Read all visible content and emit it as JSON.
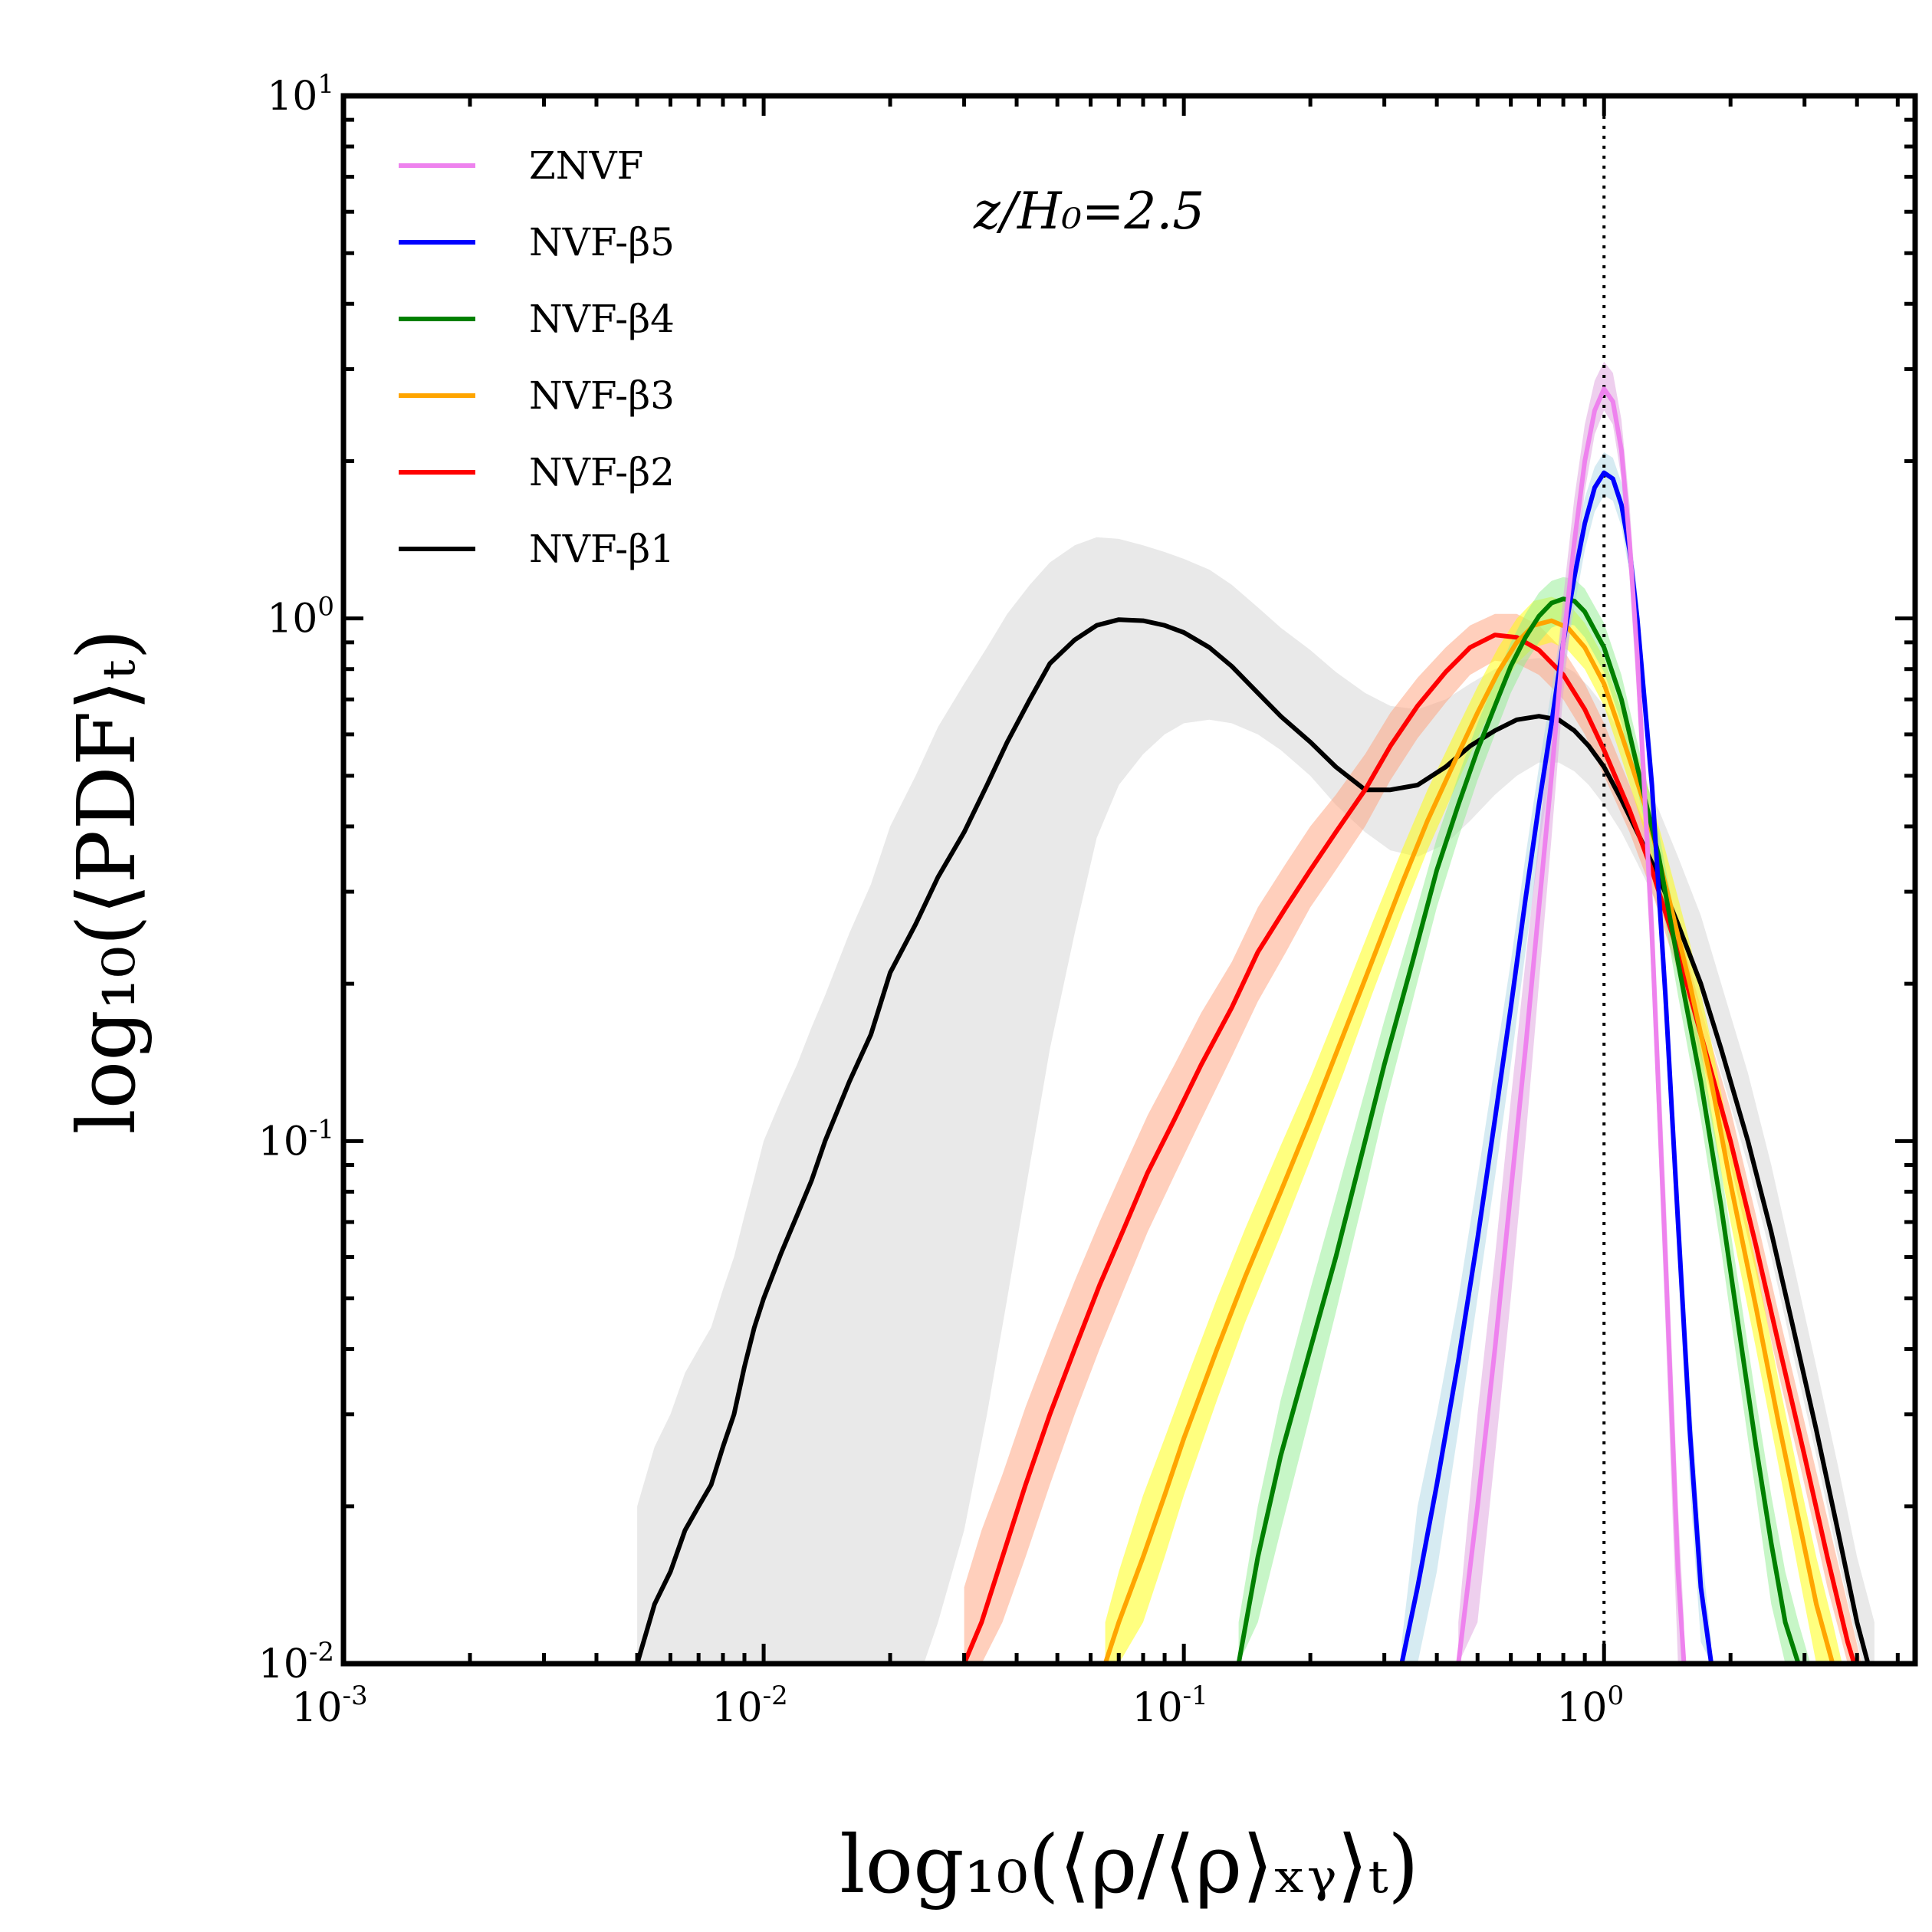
{
  "chart_data": {
    "type": "line",
    "title": "",
    "annotation": "z/H₀=2.5",
    "xlabel": "log₁₀(⟨ρ/⟨ρ⟩ₓᵧ⟩ₜ)",
    "ylabel": "log₁₀(⟨PDF⟩ₜ)",
    "xscale": "log",
    "yscale": "log",
    "xlim": [
      0.001,
      5.5
    ],
    "ylim": [
      0.01,
      10
    ],
    "x_ticks": [
      {
        "base": "10",
        "exp": "-3",
        "value": 0.001
      },
      {
        "base": "10",
        "exp": "-2",
        "value": 0.01
      },
      {
        "base": "10",
        "exp": "-1",
        "value": 0.1
      },
      {
        "base": "10",
        "exp": "0",
        "value": 1
      }
    ],
    "y_ticks": [
      {
        "base": "10",
        "exp": "-2",
        "value": 0.01
      },
      {
        "base": "10",
        "exp": "-1",
        "value": 0.1
      },
      {
        "base": "10",
        "exp": "0",
        "value": 1
      },
      {
        "base": "10",
        "exp": "1",
        "value": 10
      }
    ],
    "reference_line": {
      "x": 1.0,
      "style": "dotted"
    },
    "legend_position": "upper-left",
    "series": [
      {
        "name": "ZNVF",
        "color": "#ee82ee",
        "band_color": "#dda0dd",
        "x": [
          0.45,
          0.5,
          0.55,
          0.6,
          0.65,
          0.7,
          0.75,
          0.8,
          0.85,
          0.9,
          0.95,
          1.0,
          1.05,
          1.1,
          1.15,
          1.2,
          1.3,
          1.4,
          1.5,
          1.55
        ],
        "y": [
          0.01,
          0.02,
          0.04,
          0.08,
          0.15,
          0.28,
          0.5,
          0.9,
          1.4,
          2.0,
          2.5,
          2.75,
          2.6,
          2.1,
          1.4,
          0.85,
          0.25,
          0.06,
          0.015,
          0.01
        ],
        "band_lower": [
          0.01,
          0.012,
          0.025,
          0.05,
          0.1,
          0.2,
          0.38,
          0.72,
          1.15,
          1.75,
          2.25,
          2.5,
          2.35,
          1.85,
          1.2,
          0.7,
          0.2,
          0.045,
          0.01,
          0.01
        ],
        "band_upper": [
          0.012,
          0.03,
          0.06,
          0.12,
          0.22,
          0.38,
          0.65,
          1.1,
          1.7,
          2.35,
          2.85,
          3.1,
          2.95,
          2.4,
          1.65,
          1.0,
          0.32,
          0.08,
          0.02,
          0.012
        ]
      },
      {
        "name": "NVF-β5",
        "color": "#0000ff",
        "band_color": "#add8e6",
        "x": [
          0.33,
          0.36,
          0.4,
          0.45,
          0.5,
          0.55,
          0.6,
          0.65,
          0.7,
          0.75,
          0.8,
          0.85,
          0.9,
          0.95,
          1.0,
          1.05,
          1.1,
          1.15,
          1.2,
          1.3,
          1.4,
          1.5,
          1.6,
          1.7,
          1.8
        ],
        "y": [
          0.01,
          0.014,
          0.022,
          0.038,
          0.065,
          0.11,
          0.18,
          0.29,
          0.44,
          0.63,
          0.9,
          1.2,
          1.52,
          1.78,
          1.9,
          1.85,
          1.65,
          1.35,
          1.0,
          0.48,
          0.19,
          0.07,
          0.028,
          0.014,
          0.01
        ],
        "band_lower": [
          0.01,
          0.01,
          0.015,
          0.028,
          0.05,
          0.085,
          0.14,
          0.23,
          0.36,
          0.53,
          0.78,
          1.05,
          1.35,
          1.6,
          1.72,
          1.68,
          1.5,
          1.22,
          0.9,
          0.42,
          0.16,
          0.058,
          0.022,
          0.011,
          0.01
        ],
        "band_upper": [
          0.011,
          0.02,
          0.03,
          0.05,
          0.085,
          0.14,
          0.22,
          0.35,
          0.52,
          0.73,
          1.02,
          1.35,
          1.7,
          1.95,
          2.08,
          2.03,
          1.82,
          1.5,
          1.12,
          0.55,
          0.22,
          0.085,
          0.034,
          0.017,
          0.011
        ]
      },
      {
        "name": "NVF-β4",
        "color": "#008000",
        "band_color": "#90ee90",
        "x": [
          0.135,
          0.15,
          0.17,
          0.2,
          0.23,
          0.27,
          0.3,
          0.35,
          0.4,
          0.45,
          0.5,
          0.55,
          0.6,
          0.65,
          0.7,
          0.75,
          0.8,
          0.85,
          0.9,
          1.0,
          1.1,
          1.2,
          1.35,
          1.5,
          1.7,
          1.9,
          2.1,
          2.3,
          2.5,
          2.7,
          2.9,
          3.1
        ],
        "y": [
          0.01,
          0.016,
          0.025,
          0.04,
          0.06,
          0.1,
          0.14,
          0.22,
          0.33,
          0.44,
          0.56,
          0.68,
          0.81,
          0.92,
          1.01,
          1.07,
          1.09,
          1.08,
          1.03,
          0.88,
          0.7,
          0.52,
          0.35,
          0.22,
          0.13,
          0.075,
          0.043,
          0.026,
          0.017,
          0.012,
          0.01,
          0.008
        ],
        "band_lower": [
          0.01,
          0.012,
          0.018,
          0.03,
          0.047,
          0.08,
          0.115,
          0.185,
          0.28,
          0.38,
          0.49,
          0.6,
          0.72,
          0.82,
          0.9,
          0.96,
          0.98,
          0.97,
          0.92,
          0.79,
          0.63,
          0.47,
          0.31,
          0.19,
          0.11,
          0.062,
          0.035,
          0.021,
          0.013,
          0.01,
          0.008,
          0.007
        ],
        "band_upper": [
          0.012,
          0.02,
          0.032,
          0.052,
          0.078,
          0.125,
          0.17,
          0.26,
          0.38,
          0.5,
          0.63,
          0.76,
          0.9,
          1.02,
          1.12,
          1.18,
          1.2,
          1.19,
          1.14,
          0.98,
          0.78,
          0.58,
          0.39,
          0.25,
          0.15,
          0.088,
          0.052,
          0.032,
          0.021,
          0.015,
          0.012,
          0.01
        ]
      },
      {
        "name": "NVF-β3",
        "color": "#ffa500",
        "band_color": "#ffff00",
        "x": [
          0.065,
          0.07,
          0.08,
          0.09,
          0.1,
          0.12,
          0.14,
          0.17,
          0.2,
          0.24,
          0.28,
          0.33,
          0.38,
          0.44,
          0.5,
          0.56,
          0.62,
          0.68,
          0.75,
          0.82,
          0.9,
          1.0,
          1.1,
          1.25,
          1.4,
          1.6,
          1.8,
          2.0,
          2.3,
          2.6,
          2.9,
          3.2,
          3.5,
          3.8
        ],
        "y": [
          0.01,
          0.012,
          0.016,
          0.021,
          0.027,
          0.04,
          0.055,
          0.08,
          0.11,
          0.16,
          0.22,
          0.31,
          0.41,
          0.53,
          0.66,
          0.79,
          0.9,
          0.97,
          0.99,
          0.96,
          0.88,
          0.75,
          0.6,
          0.44,
          0.31,
          0.2,
          0.13,
          0.083,
          0.048,
          0.029,
          0.019,
          0.013,
          0.01,
          0.008
        ],
        "band_lower": [
          0.01,
          0.01,
          0.012,
          0.016,
          0.021,
          0.032,
          0.045,
          0.066,
          0.092,
          0.135,
          0.19,
          0.27,
          0.36,
          0.47,
          0.59,
          0.71,
          0.82,
          0.88,
          0.9,
          0.87,
          0.8,
          0.68,
          0.54,
          0.39,
          0.27,
          0.17,
          0.11,
          0.07,
          0.04,
          0.024,
          0.015,
          0.01,
          0.008,
          0.007
        ],
        "band_upper": [
          0.012,
          0.015,
          0.021,
          0.027,
          0.034,
          0.05,
          0.068,
          0.098,
          0.132,
          0.19,
          0.26,
          0.36,
          0.47,
          0.6,
          0.74,
          0.88,
          1.0,
          1.08,
          1.1,
          1.07,
          0.98,
          0.84,
          0.67,
          0.5,
          0.36,
          0.24,
          0.155,
          0.1,
          0.058,
          0.035,
          0.023,
          0.016,
          0.012,
          0.009
        ]
      },
      {
        "name": "NVF-β2",
        "color": "#ff0000",
        "band_color": "#ffa07a",
        "x": [
          0.03,
          0.033,
          0.037,
          0.042,
          0.048,
          0.055,
          0.063,
          0.072,
          0.082,
          0.095,
          0.11,
          0.13,
          0.15,
          0.175,
          0.2,
          0.23,
          0.27,
          0.31,
          0.36,
          0.42,
          0.48,
          0.55,
          0.62,
          0.7,
          0.8,
          0.9,
          1.0,
          1.15,
          1.3,
          1.5,
          1.7,
          2.0,
          2.3,
          2.6,
          3.0,
          3.4,
          3.8,
          4.1
        ],
        "y": [
          0.01,
          0.012,
          0.016,
          0.022,
          0.03,
          0.04,
          0.053,
          0.068,
          0.087,
          0.11,
          0.14,
          0.18,
          0.23,
          0.28,
          0.33,
          0.39,
          0.47,
          0.57,
          0.68,
          0.79,
          0.88,
          0.93,
          0.92,
          0.87,
          0.78,
          0.67,
          0.56,
          0.43,
          0.33,
          0.23,
          0.16,
          0.1,
          0.063,
          0.041,
          0.025,
          0.016,
          0.011,
          0.009
        ],
        "band_lower": [
          0.01,
          0.01,
          0.012,
          0.016,
          0.022,
          0.03,
          0.04,
          0.052,
          0.067,
          0.086,
          0.11,
          0.145,
          0.185,
          0.23,
          0.28,
          0.33,
          0.4,
          0.49,
          0.59,
          0.69,
          0.78,
          0.83,
          0.82,
          0.78,
          0.7,
          0.6,
          0.5,
          0.39,
          0.3,
          0.21,
          0.145,
          0.09,
          0.056,
          0.036,
          0.022,
          0.014,
          0.01,
          0.008
        ],
        "band_upper": [
          0.014,
          0.018,
          0.023,
          0.031,
          0.041,
          0.054,
          0.07,
          0.089,
          0.112,
          0.14,
          0.176,
          0.22,
          0.28,
          0.34,
          0.4,
          0.46,
          0.55,
          0.66,
          0.77,
          0.88,
          0.97,
          1.02,
          1.02,
          0.97,
          0.87,
          0.75,
          0.63,
          0.48,
          0.37,
          0.26,
          0.18,
          0.115,
          0.072,
          0.047,
          0.029,
          0.019,
          0.013,
          0.01
        ]
      },
      {
        "name": "NVF-β1",
        "color": "#000000",
        "band_color": "#d3d3d3",
        "x": [
          0.005,
          0.0055,
          0.006,
          0.0065,
          0.007,
          0.0075,
          0.008,
          0.0085,
          0.009,
          0.0095,
          0.01,
          0.011,
          0.012,
          0.013,
          0.014,
          0.016,
          0.018,
          0.02,
          0.023,
          0.026,
          0.03,
          0.034,
          0.038,
          0.043,
          0.048,
          0.055,
          0.062,
          0.07,
          0.08,
          0.09,
          0.1,
          0.115,
          0.13,
          0.15,
          0.17,
          0.2,
          0.23,
          0.27,
          0.31,
          0.36,
          0.42,
          0.48,
          0.55,
          0.62,
          0.7,
          0.78,
          0.85,
          0.92,
          1.0,
          1.1,
          1.2,
          1.35,
          1.5,
          1.7,
          1.9,
          2.2,
          2.5,
          2.8,
          3.2,
          3.6,
          4.0,
          4.4
        ],
        "y": [
          0.01,
          0.013,
          0.015,
          0.018,
          0.02,
          0.022,
          0.026,
          0.03,
          0.037,
          0.044,
          0.05,
          0.061,
          0.072,
          0.084,
          0.1,
          0.13,
          0.16,
          0.21,
          0.26,
          0.32,
          0.39,
          0.48,
          0.58,
          0.7,
          0.82,
          0.91,
          0.97,
          0.995,
          0.99,
          0.97,
          0.94,
          0.88,
          0.81,
          0.72,
          0.65,
          0.58,
          0.52,
          0.47,
          0.47,
          0.48,
          0.52,
          0.57,
          0.61,
          0.64,
          0.65,
          0.64,
          0.61,
          0.57,
          0.52,
          0.45,
          0.39,
          0.32,
          0.26,
          0.2,
          0.15,
          0.1,
          0.067,
          0.045,
          0.028,
          0.018,
          0.012,
          0.009
        ],
        "band_lower": [
          0.008,
          0.008,
          0.008,
          0.008,
          0.008,
          0.008,
          0.008,
          0.008,
          0.008,
          0.008,
          0.008,
          0.008,
          0.008,
          0.008,
          0.008,
          0.008,
          0.008,
          0.008,
          0.009,
          0.012,
          0.018,
          0.03,
          0.05,
          0.09,
          0.15,
          0.25,
          0.38,
          0.48,
          0.55,
          0.6,
          0.63,
          0.64,
          0.63,
          0.6,
          0.56,
          0.5,
          0.44,
          0.39,
          0.36,
          0.35,
          0.37,
          0.41,
          0.46,
          0.5,
          0.53,
          0.53,
          0.51,
          0.48,
          0.44,
          0.39,
          0.34,
          0.28,
          0.23,
          0.18,
          0.135,
          0.09,
          0.06,
          0.04,
          0.025,
          0.016,
          0.011,
          0.008
        ],
        "band_upper": [
          0.02,
          0.026,
          0.03,
          0.036,
          0.04,
          0.044,
          0.052,
          0.06,
          0.072,
          0.085,
          0.1,
          0.12,
          0.14,
          0.165,
          0.19,
          0.25,
          0.31,
          0.4,
          0.5,
          0.62,
          0.75,
          0.88,
          1.02,
          1.16,
          1.28,
          1.38,
          1.43,
          1.42,
          1.38,
          1.34,
          1.3,
          1.24,
          1.16,
          1.05,
          0.96,
          0.87,
          0.79,
          0.72,
          0.68,
          0.67,
          0.7,
          0.75,
          0.8,
          0.83,
          0.84,
          0.82,
          0.79,
          0.74,
          0.68,
          0.6,
          0.52,
          0.43,
          0.35,
          0.27,
          0.2,
          0.135,
          0.09,
          0.06,
          0.037,
          0.024,
          0.016,
          0.012
        ]
      }
    ]
  }
}
